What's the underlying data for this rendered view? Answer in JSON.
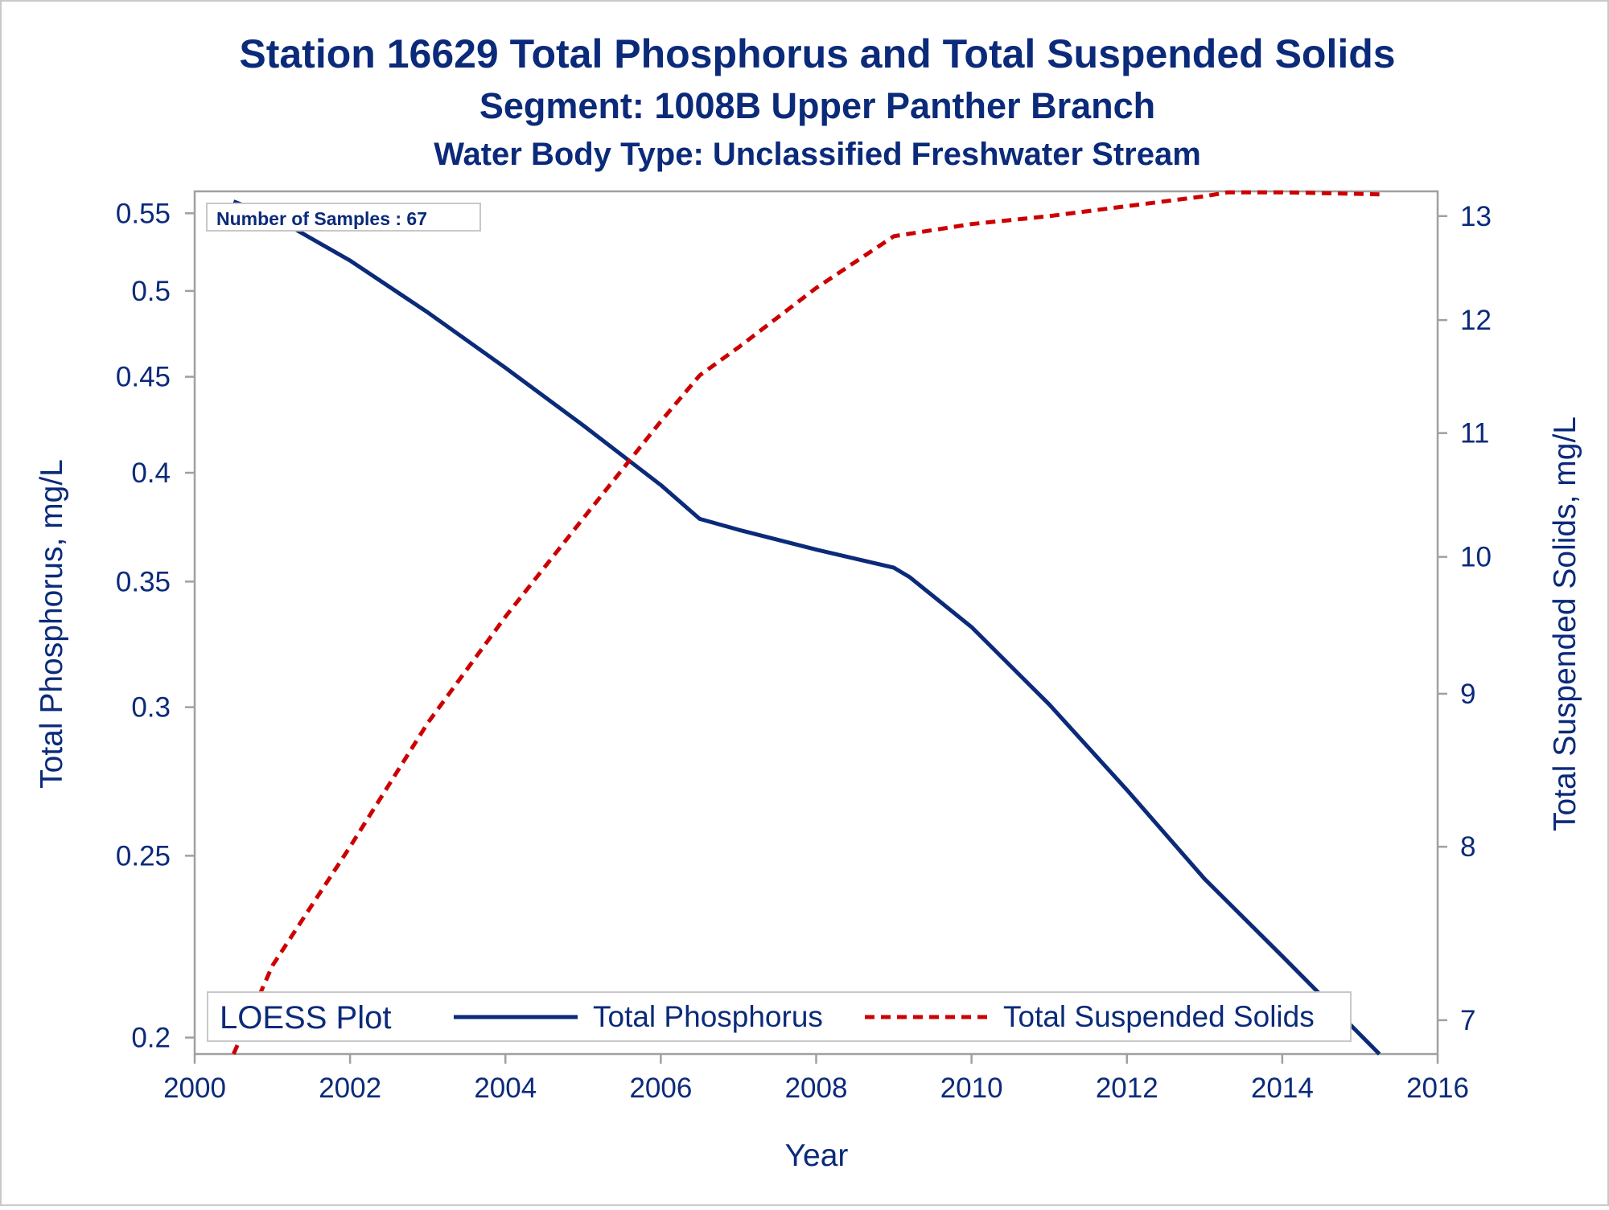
{
  "titles": {
    "main": "Station 16629  Total Phosphorus and Total Suspended Solids",
    "sub": "Segment: 1008B  Upper Panther Branch",
    "sub2": "Water Body Type: Unclassified Freshwater Stream"
  },
  "inset": {
    "text": "Number of Samples : 67"
  },
  "legend": {
    "title": "LOESS Plot",
    "items": [
      "Total Phosphorus",
      "Total Suspended Solids"
    ]
  },
  "colors": {
    "phosphorus": "#0b2a7a",
    "tss": "#cc0000",
    "frame": "#a0a0a0",
    "text": "#0b2a7a"
  },
  "chart_data": {
    "type": "line",
    "title": "Station 16629  Total Phosphorus and Total Suspended Solids",
    "xlabel": "Year",
    "ylabel": "Total Phosphorus, mg/L",
    "y2label": "Total Suspended Solids, mg/L",
    "xlim": [
      2000,
      2016
    ],
    "xticks": [
      2000,
      2002,
      2004,
      2006,
      2008,
      2010,
      2012,
      2014,
      2016
    ],
    "ylim": [
      0.196,
      0.565
    ],
    "yscale": "log",
    "yticks": [
      0.2,
      0.25,
      0.3,
      0.35,
      0.4,
      0.45,
      0.5,
      0.55
    ],
    "y2lim": [
      6.82,
      13.25
    ],
    "y2scale": "log",
    "y2ticks": [
      7,
      8,
      9,
      10,
      11,
      12,
      13
    ],
    "legend_position": "bottom-inside",
    "series": [
      {
        "name": "Total Phosphorus",
        "axis": "left",
        "style": "solid",
        "x": [
          2000.5,
          2001,
          2002,
          2003,
          2004,
          2005,
          2006,
          2006.5,
          2007,
          2008,
          2009,
          2009.2,
          2010,
          2011,
          2012,
          2013,
          2014,
          2015.25
        ],
        "y": [
          0.558,
          0.548,
          0.519,
          0.487,
          0.455,
          0.424,
          0.394,
          0.378,
          0.373,
          0.364,
          0.356,
          0.352,
          0.331,
          0.301,
          0.271,
          0.243,
          0.221,
          0.196
        ]
      },
      {
        "name": "Total Suspended Solids",
        "axis": "right",
        "style": "dashed",
        "x": [
          2000.5,
          2001,
          2002,
          2003,
          2004,
          2005,
          2006,
          2006.5,
          2007,
          2008,
          2009,
          2010,
          2011,
          2012,
          2013,
          2013.3,
          2014,
          2015.25
        ],
        "y": [
          6.82,
          7.3,
          8.0,
          8.8,
          9.55,
          10.3,
          11.1,
          11.5,
          11.75,
          12.3,
          12.8,
          12.92,
          13.0,
          13.1,
          13.2,
          13.24,
          13.24,
          13.22
        ]
      }
    ]
  }
}
